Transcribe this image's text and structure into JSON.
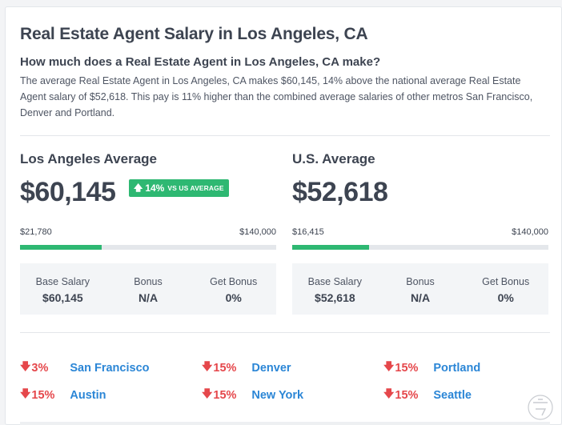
{
  "title": "Real Estate Agent Salary in Los Angeles, CA",
  "subheading": "How much does a Real Estate Agent in Los Angeles, CA make?",
  "description": "The average Real Estate Agent in Los Angeles, CA makes $60,145, 14% above the national average Real Estate Agent salary of $52,618. This pay is 11% higher than the combined average salaries of other metros San Francisco, Denver and Portland.",
  "local": {
    "label": "Los Angeles Average",
    "value": "$60,145",
    "badge_pct": "14%",
    "badge_text": "VS US AVERAGE",
    "range_min": "$21,780",
    "range_max": "$140,000",
    "bar_fill_pct": 32,
    "breakdown": [
      {
        "label": "Base Salary",
        "value": "$60,145"
      },
      {
        "label": "Bonus",
        "value": "N/A"
      },
      {
        "label": "Get Bonus",
        "value": "0%"
      }
    ]
  },
  "national": {
    "label": "U.S. Average",
    "value": "$52,618",
    "range_min": "$16,415",
    "range_max": "$140,000",
    "bar_fill_pct": 30,
    "breakdown": [
      {
        "label": "Base Salary",
        "value": "$52,618"
      },
      {
        "label": "Bonus",
        "value": "N/A"
      },
      {
        "label": "Get Bonus",
        "value": "0%"
      }
    ]
  },
  "metros": [
    {
      "pct": "3%",
      "city": "San Francisco"
    },
    {
      "pct": "15%",
      "city": "Denver"
    },
    {
      "pct": "15%",
      "city": "Portland"
    },
    {
      "pct": "15%",
      "city": "Austin"
    },
    {
      "pct": "15%",
      "city": "New York"
    },
    {
      "pct": "15%",
      "city": "Seattle"
    }
  ],
  "colors": {
    "accent_green": "#2eb872",
    "down_red": "#e5474b",
    "link_blue": "#2b86d6",
    "text_dark": "#3d4451"
  },
  "icons": {
    "badge": "arrow-up-icon",
    "metro": "arrow-down-icon"
  }
}
